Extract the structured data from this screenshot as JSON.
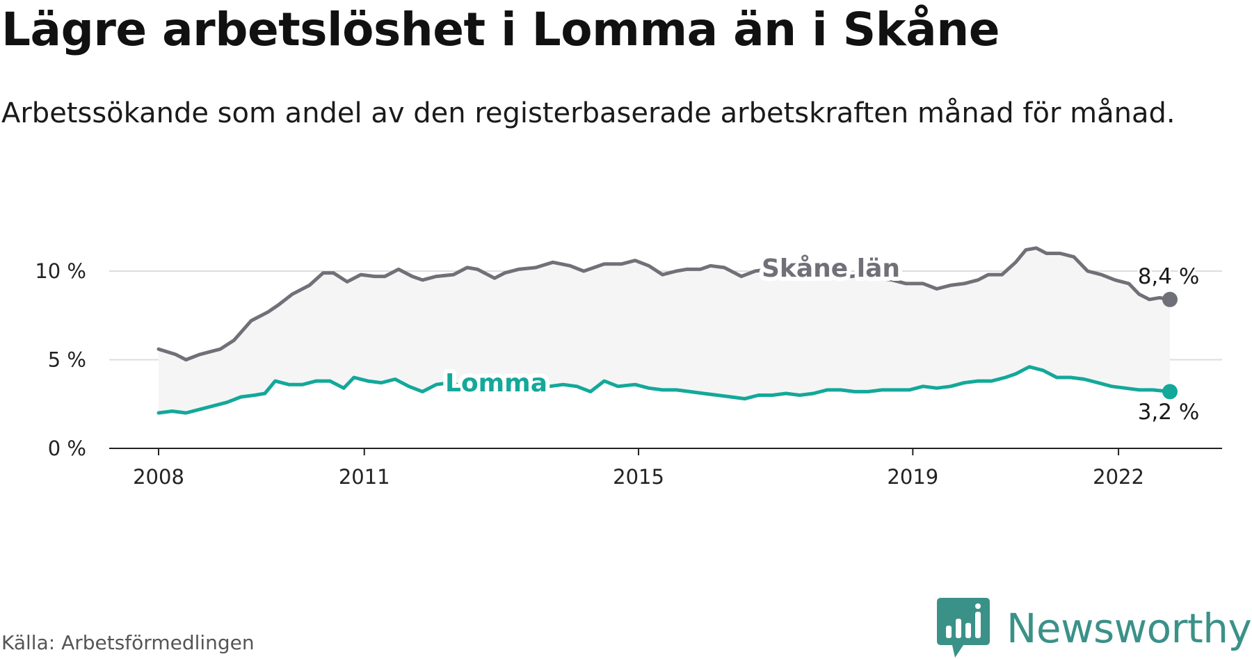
{
  "title": "Lägre arbetslöshet i Lomma än i Skåne",
  "subtitle": "Arbetssökande som andel av den registerbaserade arbetskraften månad för månad.",
  "source": "Källa: Arbetsförmedlingen",
  "logo_text": "Newsworthy",
  "colors": {
    "skane": "#707078",
    "lomma": "#13a89a",
    "band": "#f2f2f2",
    "grid": "#dddddd",
    "axis": "#222222",
    "brand": "#3a9188"
  },
  "chart_data": {
    "type": "line",
    "title": "Lägre arbetslöshet i Lomma än i Skåne",
    "xlabel": "",
    "ylabel": "",
    "x_range": [
      2008.0,
      2022.75
    ],
    "ylim": [
      0,
      10
    ],
    "y_ticks": [
      {
        "value": 0,
        "label": "0 %"
      },
      {
        "value": 5,
        "label": "5 %"
      },
      {
        "value": 10,
        "label": "10 %"
      }
    ],
    "x_ticks": [
      {
        "value": 2008,
        "label": "2008"
      },
      {
        "value": 2011,
        "label": "2011"
      },
      {
        "value": 2015,
        "label": "2015"
      },
      {
        "value": 2019,
        "label": "2019"
      },
      {
        "value": 2022,
        "label": "2022"
      }
    ],
    "series": [
      {
        "name": "Skåne län",
        "label": "Skåne län",
        "end_label": "8,4 %",
        "end_value": 8.4,
        "points": [
          [
            2008.0,
            5.6
          ],
          [
            2008.25,
            5.3
          ],
          [
            2008.4,
            5.0
          ],
          [
            2008.6,
            5.3
          ],
          [
            2008.9,
            5.6
          ],
          [
            2009.1,
            6.1
          ],
          [
            2009.35,
            7.2
          ],
          [
            2009.6,
            7.7
          ],
          [
            2009.75,
            8.1
          ],
          [
            2009.95,
            8.7
          ],
          [
            2010.2,
            9.2
          ],
          [
            2010.4,
            9.9
          ],
          [
            2010.55,
            9.9
          ],
          [
            2010.75,
            9.4
          ],
          [
            2010.95,
            9.8
          ],
          [
            2011.15,
            9.7
          ],
          [
            2011.3,
            9.7
          ],
          [
            2011.5,
            10.1
          ],
          [
            2011.7,
            9.7
          ],
          [
            2011.85,
            9.5
          ],
          [
            2012.05,
            9.7
          ],
          [
            2012.3,
            9.8
          ],
          [
            2012.5,
            10.2
          ],
          [
            2012.65,
            10.1
          ],
          [
            2012.9,
            9.6
          ],
          [
            2013.05,
            9.9
          ],
          [
            2013.25,
            10.1
          ],
          [
            2013.5,
            10.2
          ],
          [
            2013.75,
            10.5
          ],
          [
            2014.0,
            10.3
          ],
          [
            2014.2,
            10.0
          ],
          [
            2014.5,
            10.4
          ],
          [
            2014.75,
            10.4
          ],
          [
            2014.95,
            10.6
          ],
          [
            2015.15,
            10.3
          ],
          [
            2015.35,
            9.8
          ],
          [
            2015.55,
            10.0
          ],
          [
            2015.7,
            10.1
          ],
          [
            2015.9,
            10.1
          ],
          [
            2016.05,
            10.3
          ],
          [
            2016.25,
            10.2
          ],
          [
            2016.5,
            9.7
          ],
          [
            2016.7,
            10.0
          ],
          [
            2016.9,
            10.1
          ],
          [
            2017.1,
            10.1
          ],
          [
            2017.3,
            10.2
          ],
          [
            2017.5,
            10.3
          ],
          [
            2017.7,
            10.0
          ],
          [
            2017.9,
            9.7
          ],
          [
            2018.1,
            9.7
          ],
          [
            2018.3,
            9.8
          ],
          [
            2018.5,
            9.6
          ],
          [
            2018.7,
            9.5
          ],
          [
            2018.9,
            9.3
          ],
          [
            2019.15,
            9.3
          ],
          [
            2019.35,
            9.0
          ],
          [
            2019.55,
            9.2
          ],
          [
            2019.75,
            9.3
          ],
          [
            2019.95,
            9.5
          ],
          [
            2020.1,
            9.8
          ],
          [
            2020.3,
            9.8
          ],
          [
            2020.5,
            10.5
          ],
          [
            2020.65,
            11.2
          ],
          [
            2020.8,
            11.3
          ],
          [
            2020.95,
            11.0
          ],
          [
            2021.15,
            11.0
          ],
          [
            2021.35,
            10.8
          ],
          [
            2021.55,
            10.0
          ],
          [
            2021.75,
            9.8
          ],
          [
            2021.95,
            9.5
          ],
          [
            2022.15,
            9.3
          ],
          [
            2022.3,
            8.7
          ],
          [
            2022.45,
            8.4
          ],
          [
            2022.6,
            8.5
          ],
          [
            2022.75,
            8.4
          ]
        ]
      },
      {
        "name": "Lomma",
        "label": "Lomma",
        "end_label": "3,2 %",
        "end_value": 3.2,
        "points": [
          [
            2008.0,
            2.0
          ],
          [
            2008.2,
            2.1
          ],
          [
            2008.4,
            2.0
          ],
          [
            2008.6,
            2.2
          ],
          [
            2008.8,
            2.4
          ],
          [
            2009.0,
            2.6
          ],
          [
            2009.2,
            2.9
          ],
          [
            2009.4,
            3.0
          ],
          [
            2009.55,
            3.1
          ],
          [
            2009.7,
            3.8
          ],
          [
            2009.9,
            3.6
          ],
          [
            2010.1,
            3.6
          ],
          [
            2010.3,
            3.8
          ],
          [
            2010.5,
            3.8
          ],
          [
            2010.7,
            3.4
          ],
          [
            2010.85,
            4.0
          ],
          [
            2011.05,
            3.8
          ],
          [
            2011.25,
            3.7
          ],
          [
            2011.45,
            3.9
          ],
          [
            2011.65,
            3.5
          ],
          [
            2011.85,
            3.2
          ],
          [
            2012.05,
            3.6
          ],
          [
            2012.25,
            3.7
          ],
          [
            2012.45,
            3.5
          ],
          [
            2012.65,
            3.5
          ],
          [
            2012.9,
            3.6
          ],
          [
            2013.1,
            3.4
          ],
          [
            2013.3,
            3.5
          ],
          [
            2013.5,
            3.4
          ],
          [
            2013.7,
            3.5
          ],
          [
            2013.9,
            3.6
          ],
          [
            2014.1,
            3.5
          ],
          [
            2014.3,
            3.2
          ],
          [
            2014.5,
            3.8
          ],
          [
            2014.7,
            3.5
          ],
          [
            2014.95,
            3.6
          ],
          [
            2015.15,
            3.4
          ],
          [
            2015.35,
            3.3
          ],
          [
            2015.55,
            3.3
          ],
          [
            2015.75,
            3.2
          ],
          [
            2015.95,
            3.1
          ],
          [
            2016.15,
            3.0
          ],
          [
            2016.35,
            2.9
          ],
          [
            2016.55,
            2.8
          ],
          [
            2016.75,
            3.0
          ],
          [
            2016.95,
            3.0
          ],
          [
            2017.15,
            3.1
          ],
          [
            2017.35,
            3.0
          ],
          [
            2017.55,
            3.1
          ],
          [
            2017.75,
            3.3
          ],
          [
            2017.95,
            3.3
          ],
          [
            2018.15,
            3.2
          ],
          [
            2018.35,
            3.2
          ],
          [
            2018.55,
            3.3
          ],
          [
            2018.75,
            3.3
          ],
          [
            2018.95,
            3.3
          ],
          [
            2019.15,
            3.5
          ],
          [
            2019.35,
            3.4
          ],
          [
            2019.55,
            3.5
          ],
          [
            2019.75,
            3.7
          ],
          [
            2019.95,
            3.8
          ],
          [
            2020.15,
            3.8
          ],
          [
            2020.35,
            4.0
          ],
          [
            2020.5,
            4.2
          ],
          [
            2020.7,
            4.6
          ],
          [
            2020.9,
            4.4
          ],
          [
            2021.1,
            4.0
          ],
          [
            2021.3,
            4.0
          ],
          [
            2021.5,
            3.9
          ],
          [
            2021.7,
            3.7
          ],
          [
            2021.9,
            3.5
          ],
          [
            2022.1,
            3.4
          ],
          [
            2022.3,
            3.3
          ],
          [
            2022.5,
            3.3
          ],
          [
            2022.75,
            3.2
          ]
        ]
      }
    ]
  }
}
